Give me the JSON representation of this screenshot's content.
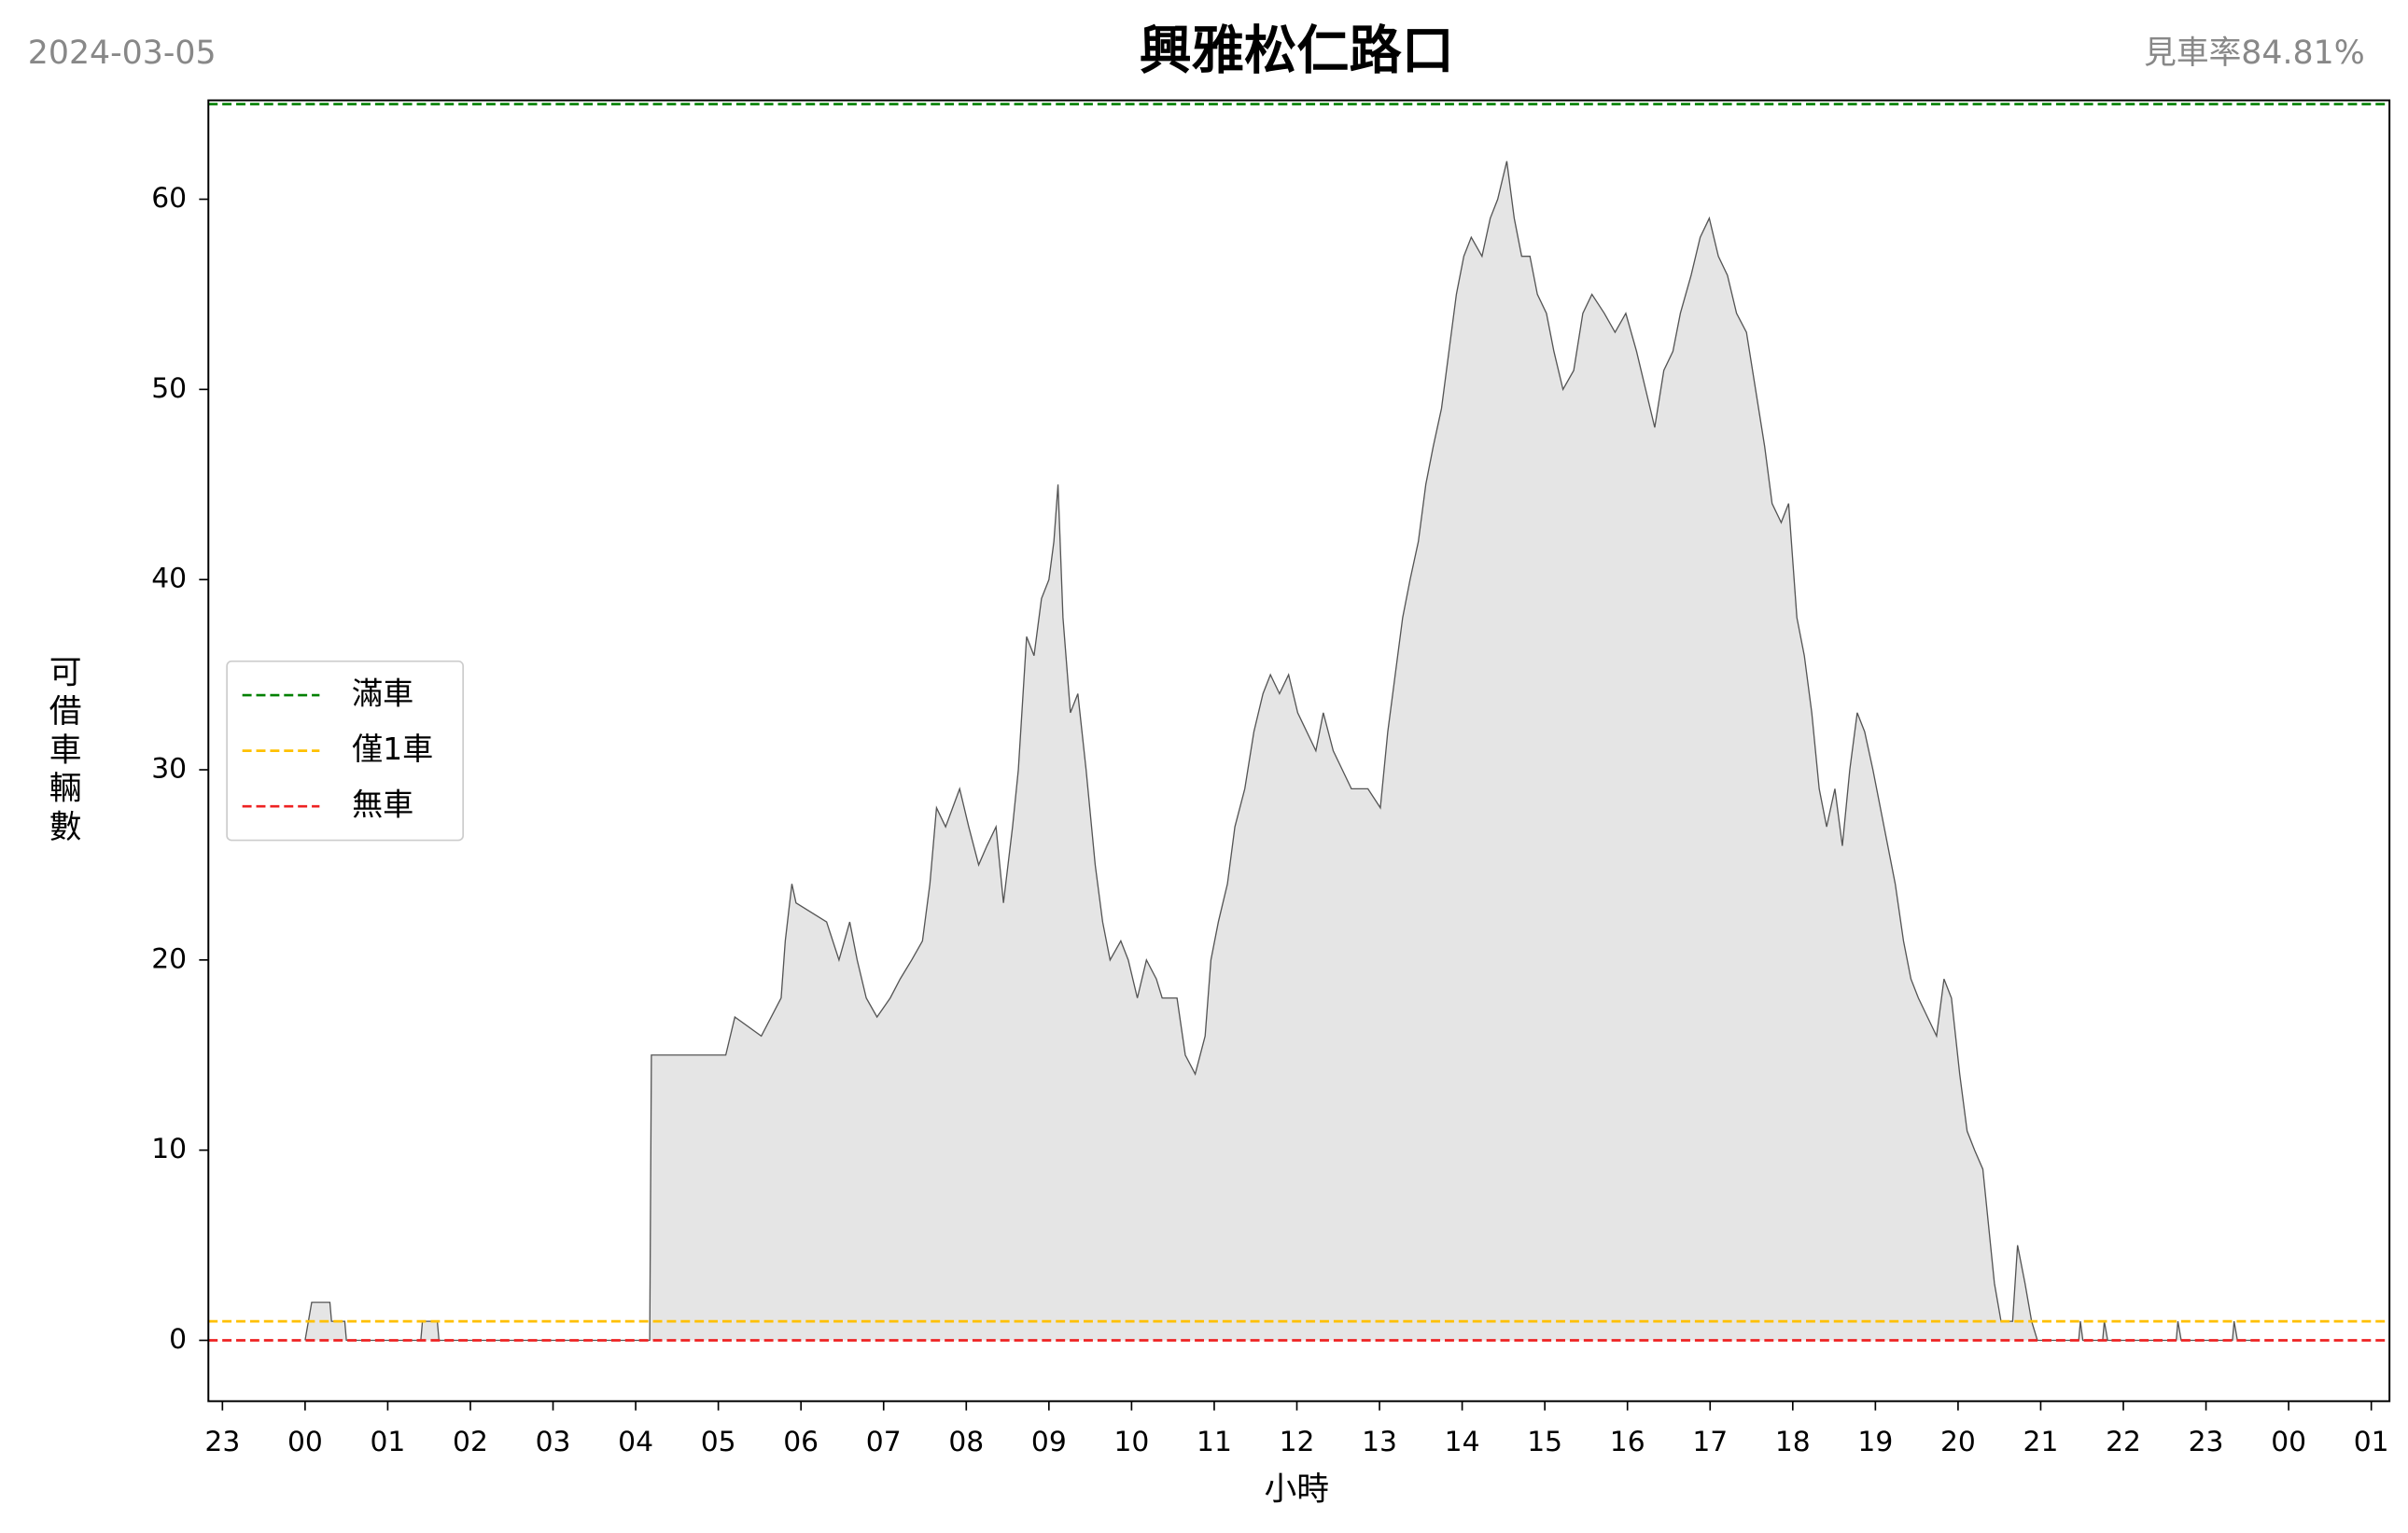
{
  "chart_data": {
    "type": "area",
    "title": "興雅松仁路口",
    "date": "2024-03-05",
    "rate": "見車率84.81%",
    "xlabel": "小時",
    "ylabel": "可借車輛數",
    "xlim": [
      -1.17,
      25.22
    ],
    "ylim": [
      -3.2,
      65.2
    ],
    "xticks": [
      {
        "value": -1,
        "label": "23"
      },
      {
        "value": 0,
        "label": "00"
      },
      {
        "value": 1,
        "label": "01"
      },
      {
        "value": 2,
        "label": "02"
      },
      {
        "value": 3,
        "label": "03"
      },
      {
        "value": 4,
        "label": "04"
      },
      {
        "value": 5,
        "label": "05"
      },
      {
        "value": 6,
        "label": "06"
      },
      {
        "value": 7,
        "label": "07"
      },
      {
        "value": 8,
        "label": "08"
      },
      {
        "value": 9,
        "label": "09"
      },
      10,
      11,
      12,
      13,
      14,
      15,
      16,
      17,
      18,
      19,
      20,
      21,
      22,
      {
        "value": 23,
        "label": "23"
      },
      {
        "value": 24,
        "label": "00"
      },
      {
        "value": 25,
        "label": "01"
      }
    ],
    "yticks": [
      0,
      10,
      20,
      30,
      40,
      50,
      60
    ],
    "legend_loc": "center left",
    "reference_lines": [
      {
        "name": "滿車",
        "color": "#008000",
        "value": 65
      },
      {
        "name": "僅1車",
        "color": "#ffc000",
        "value": 1
      },
      {
        "name": "無車",
        "color": "#ee2222",
        "value": 0
      }
    ],
    "series": [
      {
        "color": "#555555",
        "fill": "#e5e5e5",
        "x": [
          0,
          0.08,
          0.3,
          0.32,
          0.48,
          0.5,
          1.4,
          1.42,
          1.6,
          1.62,
          4.17,
          4.19,
          5.09,
          5.2,
          5.52,
          5.76,
          5.81,
          5.89,
          5.94,
          6.31,
          6.46,
          6.59,
          6.68,
          6.79,
          6.92,
          7.08,
          7.2,
          7.34,
          7.47,
          7.56,
          7.64,
          7.75,
          7.92,
          8.03,
          8.15,
          8.25,
          8.36,
          8.45,
          8.56,
          8.63,
          8.73,
          8.82,
          8.91,
          9.0,
          9.06,
          9.11,
          9.17,
          9.26,
          9.35,
          9.45,
          9.56,
          9.65,
          9.74,
          9.87,
          9.96,
          10.07,
          10.18,
          10.3,
          10.37,
          10.55,
          10.65,
          10.77,
          10.89,
          10.96,
          11.05,
          11.16,
          11.25,
          11.37,
          11.48,
          11.59,
          11.68,
          11.79,
          11.9,
          12.01,
          12.12,
          12.23,
          12.32,
          12.44,
          12.55,
          12.66,
          12.86,
          13.01,
          13.1,
          13.19,
          13.28,
          13.37,
          13.47,
          13.56,
          13.65,
          13.75,
          13.84,
          13.93,
          14.02,
          14.11,
          14.24,
          14.34,
          14.43,
          14.54,
          14.63,
          14.72,
          14.82,
          14.91,
          15.02,
          15.11,
          15.22,
          15.35,
          15.46,
          15.57,
          15.72,
          15.85,
          15.98,
          16.11,
          16.22,
          16.33,
          16.44,
          16.55,
          16.64,
          16.77,
          16.88,
          16.99,
          17.1,
          17.21,
          17.32,
          17.44,
          17.55,
          17.66,
          17.75,
          17.86,
          17.95,
          18.05,
          18.14,
          18.23,
          18.32,
          18.41,
          18.51,
          18.6,
          18.69,
          18.78,
          18.87,
          18.97,
          19.06,
          19.15,
          19.24,
          19.34,
          19.43,
          19.52,
          19.63,
          19.74,
          19.83,
          19.92,
          20.02,
          20.11,
          20.2,
          20.3,
          20.37,
          20.44,
          20.52,
          20.66,
          20.72,
          20.81,
          20.89,
          20.96,
          21.46,
          21.48,
          21.51,
          21.75,
          21.77,
          21.81,
          22.64,
          22.66,
          22.7,
          23.32,
          23.34,
          23.38,
          23.62
        ],
        "values": [
          0,
          2,
          2,
          1,
          1,
          0,
          0,
          1,
          1,
          0,
          0,
          15,
          15,
          17,
          16,
          18,
          21,
          24,
          23,
          22,
          20,
          22,
          20,
          18,
          17,
          18,
          19,
          20,
          21,
          24,
          28,
          27,
          29,
          27,
          25,
          26,
          27,
          23,
          27,
          30,
          37,
          36,
          39,
          40,
          42,
          45,
          38,
          33,
          34,
          30,
          25,
          22,
          20,
          21,
          20,
          18,
          20,
          19,
          18,
          18,
          15,
          14,
          16,
          20,
          22,
          24,
          27,
          29,
          32,
          34,
          35,
          34,
          35,
          33,
          32,
          31,
          33,
          31,
          30,
          29,
          29,
          28,
          32,
          35,
          38,
          40,
          42,
          45,
          47,
          49,
          52,
          55,
          57,
          58,
          57,
          59,
          60,
          62,
          59,
          57,
          57,
          55,
          54,
          52,
          50,
          51,
          54,
          55,
          54,
          53,
          54,
          52,
          50,
          48,
          51,
          52,
          54,
          56,
          58,
          59,
          57,
          56,
          54,
          53,
          50,
          47,
          44,
          43,
          44,
          38,
          36,
          33,
          29,
          27,
          29,
          26,
          30,
          33,
          32,
          30,
          28,
          26,
          24,
          21,
          19,
          18,
          17,
          16,
          19,
          18,
          14,
          11,
          10,
          9,
          6,
          3,
          1,
          1,
          5,
          3,
          1,
          0,
          0,
          1,
          0,
          0,
          1,
          0,
          0,
          1,
          0,
          0,
          1,
          0,
          0
        ]
      }
    ]
  }
}
